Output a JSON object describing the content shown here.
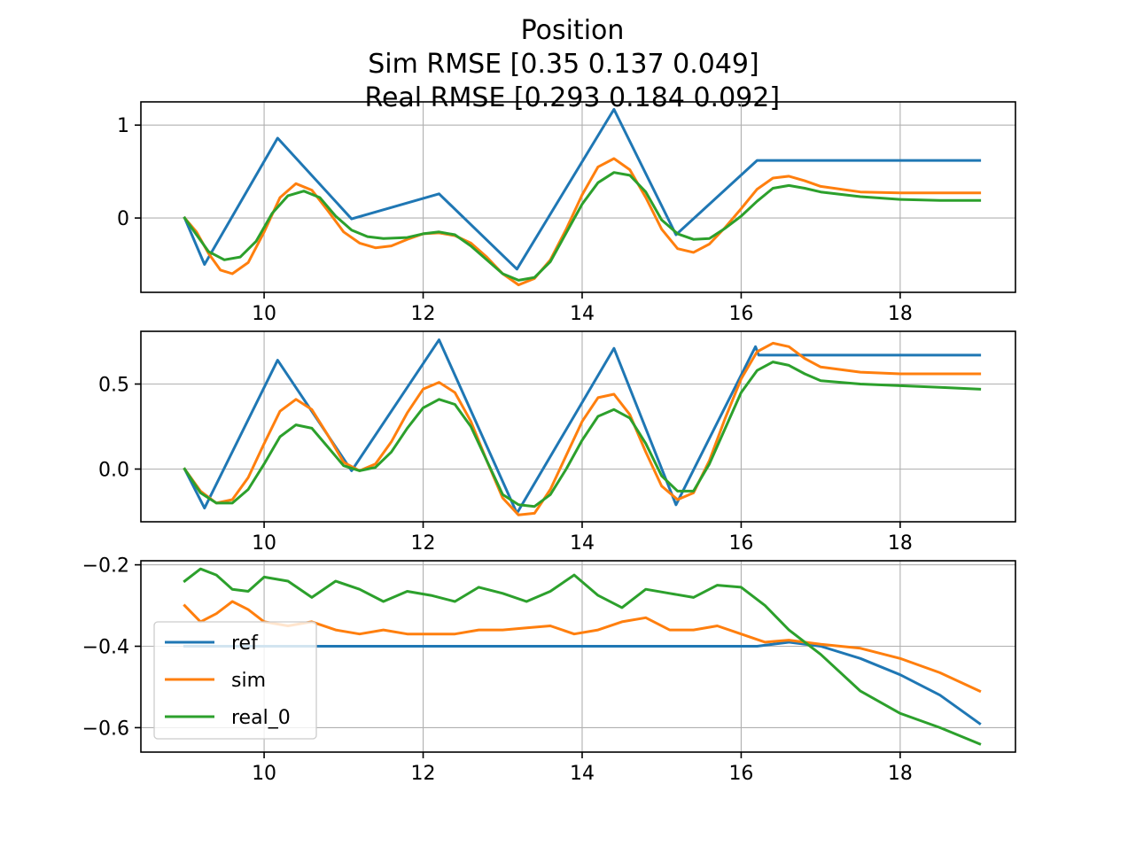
{
  "chart_data": {
    "type": "line",
    "title_lines": [
      "Position",
      "Sim RMSE [0.35  0.137 0.049]",
      " Real RMSE [0.293 0.184 0.092]"
    ],
    "colors": {
      "ref": "#1f77b4",
      "sim": "#ff7f0e",
      "real_0": "#2ca02c"
    },
    "legend": {
      "location": "lower-left",
      "subplot": 3,
      "entries": [
        "ref",
        "sim",
        "real_0"
      ]
    },
    "grid": true,
    "subplots": [
      {
        "xlim": [
          8.45,
          19.45
        ],
        "ylim": [
          -0.8,
          1.25
        ],
        "xticks": [
          10,
          12,
          14,
          16,
          18
        ],
        "xtick_labels": [
          "10",
          "12",
          "14",
          "16",
          "18"
        ],
        "yticks": [
          0,
          1
        ],
        "ytick_labels": [
          "0",
          "1"
        ],
        "series": [
          {
            "name": "ref",
            "x": [
              9.0,
              9.25,
              10.17,
              11.1,
              12.2,
              13.18,
              14.4,
              15.18,
              16.2,
              19.0
            ],
            "y": [
              0.0,
              -0.5,
              0.86,
              -0.01,
              0.26,
              -0.55,
              1.17,
              -0.18,
              0.62,
              0.62
            ]
          },
          {
            "name": "sim",
            "x": [
              9.0,
              9.15,
              9.3,
              9.45,
              9.6,
              9.8,
              10.0,
              10.2,
              10.4,
              10.6,
              10.8,
              11.0,
              11.2,
              11.4,
              11.6,
              11.8,
              12.0,
              12.2,
              12.4,
              12.6,
              12.8,
              13.0,
              13.2,
              13.4,
              13.6,
              13.8,
              14.0,
              14.2,
              14.4,
              14.6,
              14.8,
              15.0,
              15.2,
              15.4,
              15.6,
              15.8,
              16.0,
              16.2,
              16.4,
              16.6,
              16.8,
              17.0,
              17.5,
              18.0,
              18.5,
              19.0
            ],
            "y": [
              0.0,
              -0.15,
              -0.38,
              -0.56,
              -0.6,
              -0.48,
              -0.15,
              0.22,
              0.37,
              0.3,
              0.08,
              -0.15,
              -0.27,
              -0.32,
              -0.3,
              -0.23,
              -0.17,
              -0.16,
              -0.19,
              -0.27,
              -0.42,
              -0.6,
              -0.72,
              -0.65,
              -0.45,
              -0.12,
              0.25,
              0.55,
              0.64,
              0.52,
              0.22,
              -0.12,
              -0.33,
              -0.37,
              -0.28,
              -0.1,
              0.1,
              0.31,
              0.43,
              0.45,
              0.4,
              0.34,
              0.28,
              0.27,
              0.27,
              0.27
            ]
          },
          {
            "name": "real_0",
            "x": [
              9.0,
              9.15,
              9.3,
              9.5,
              9.7,
              9.9,
              10.1,
              10.3,
              10.5,
              10.7,
              10.9,
              11.1,
              11.3,
              11.5,
              11.8,
              12.0,
              12.2,
              12.4,
              12.6,
              12.8,
              13.0,
              13.2,
              13.4,
              13.6,
              13.8,
              14.0,
              14.2,
              14.4,
              14.6,
              14.8,
              15.0,
              15.2,
              15.4,
              15.6,
              15.8,
              16.0,
              16.2,
              16.4,
              16.6,
              16.8,
              17.0,
              17.5,
              18.0,
              18.5,
              19.0
            ],
            "y": [
              0.0,
              -0.18,
              -0.36,
              -0.45,
              -0.42,
              -0.25,
              0.05,
              0.24,
              0.29,
              0.22,
              0.02,
              -0.13,
              -0.2,
              -0.22,
              -0.21,
              -0.17,
              -0.15,
              -0.18,
              -0.3,
              -0.45,
              -0.6,
              -0.67,
              -0.64,
              -0.47,
              -0.16,
              0.15,
              0.38,
              0.49,
              0.46,
              0.28,
              -0.02,
              -0.17,
              -0.23,
              -0.22,
              -0.11,
              0.02,
              0.18,
              0.32,
              0.35,
              0.32,
              0.28,
              0.23,
              0.2,
              0.19,
              0.19
            ]
          }
        ]
      },
      {
        "xlim": [
          8.45,
          19.45
        ],
        "ylim": [
          -0.31,
          0.81
        ],
        "xticks": [
          10,
          12,
          14,
          16,
          18
        ],
        "xtick_labels": [
          "10",
          "12",
          "14",
          "16",
          "18"
        ],
        "yticks": [
          0.0,
          0.5
        ],
        "ytick_labels": [
          "0.0",
          "0.5"
        ],
        "series": [
          {
            "name": "ref",
            "x": [
              9.0,
              9.25,
              10.17,
              11.1,
              12.2,
              13.18,
              14.4,
              15.18,
              16.18,
              16.22,
              19.0
            ],
            "y": [
              0.0,
              -0.23,
              0.64,
              -0.01,
              0.76,
              -0.26,
              0.71,
              -0.21,
              0.72,
              0.67,
              0.67
            ]
          },
          {
            "name": "sim",
            "x": [
              9.0,
              9.2,
              9.4,
              9.6,
              9.8,
              10.0,
              10.2,
              10.4,
              10.6,
              10.8,
              11.0,
              11.2,
              11.4,
              11.6,
              11.8,
              12.0,
              12.2,
              12.4,
              12.6,
              12.8,
              13.0,
              13.2,
              13.4,
              13.6,
              13.8,
              14.0,
              14.2,
              14.4,
              14.6,
              14.8,
              15.0,
              15.2,
              15.4,
              15.6,
              15.8,
              16.0,
              16.2,
              16.4,
              16.6,
              16.8,
              17.0,
              17.5,
              18.0,
              18.5,
              19.0
            ],
            "y": [
              0.0,
              -0.13,
              -0.2,
              -0.18,
              -0.05,
              0.15,
              0.34,
              0.41,
              0.35,
              0.2,
              0.04,
              -0.01,
              0.03,
              0.16,
              0.33,
              0.47,
              0.51,
              0.45,
              0.28,
              0.05,
              -0.17,
              -0.27,
              -0.26,
              -0.12,
              0.08,
              0.28,
              0.42,
              0.44,
              0.32,
              0.1,
              -0.1,
              -0.18,
              -0.14,
              0.05,
              0.3,
              0.53,
              0.69,
              0.74,
              0.72,
              0.65,
              0.6,
              0.57,
              0.56,
              0.56,
              0.56
            ]
          },
          {
            "name": "real_0",
            "x": [
              9.0,
              9.2,
              9.4,
              9.6,
              9.8,
              10.0,
              10.2,
              10.4,
              10.6,
              10.8,
              11.0,
              11.2,
              11.4,
              11.6,
              11.8,
              12.0,
              12.2,
              12.4,
              12.6,
              12.8,
              13.0,
              13.2,
              13.4,
              13.6,
              13.8,
              14.0,
              14.2,
              14.4,
              14.6,
              14.8,
              15.0,
              15.2,
              15.4,
              15.6,
              15.8,
              16.0,
              16.2,
              16.4,
              16.6,
              16.8,
              17.0,
              17.5,
              18.0,
              18.5,
              19.0
            ],
            "y": [
              0.0,
              -0.14,
              -0.2,
              -0.2,
              -0.12,
              0.03,
              0.19,
              0.26,
              0.24,
              0.13,
              0.02,
              -0.01,
              0.01,
              0.1,
              0.24,
              0.36,
              0.41,
              0.38,
              0.25,
              0.05,
              -0.15,
              -0.21,
              -0.22,
              -0.15,
              0.0,
              0.17,
              0.31,
              0.35,
              0.3,
              0.15,
              -0.04,
              -0.13,
              -0.13,
              0.03,
              0.24,
              0.45,
              0.58,
              0.63,
              0.61,
              0.56,
              0.52,
              0.5,
              0.49,
              0.48,
              0.47
            ]
          }
        ]
      },
      {
        "xlim": [
          8.45,
          19.45
        ],
        "ylim": [
          -0.66,
          -0.19
        ],
        "xticks": [
          10,
          12,
          14,
          16,
          18
        ],
        "xtick_labels": [
          "10",
          "12",
          "14",
          "16",
          "18"
        ],
        "yticks": [
          -0.2,
          -0.4,
          -0.6
        ],
        "ytick_labels": [
          "−0.2",
          "−0.4",
          "−0.6"
        ],
        "series": [
          {
            "name": "ref",
            "x": [
              9.0,
              16.2,
              16.6,
              17.0,
              17.5,
              18.0,
              18.5,
              19.0
            ],
            "y": [
              -0.4,
              -0.4,
              -0.39,
              -0.4,
              -0.43,
              -0.47,
              -0.52,
              -0.59
            ]
          },
          {
            "name": "sim",
            "x": [
              9.0,
              9.2,
              9.4,
              9.6,
              9.8,
              10.0,
              10.3,
              10.6,
              10.9,
              11.2,
              11.5,
              11.8,
              12.1,
              12.4,
              12.7,
              13.0,
              13.3,
              13.6,
              13.9,
              14.2,
              14.5,
              14.8,
              15.1,
              15.4,
              15.7,
              16.0,
              16.3,
              16.6,
              17.0,
              17.5,
              18.0,
              18.5,
              19.0
            ],
            "y": [
              -0.3,
              -0.34,
              -0.32,
              -0.29,
              -0.31,
              -0.34,
              -0.35,
              -0.34,
              -0.36,
              -0.37,
              -0.36,
              -0.37,
              -0.37,
              -0.37,
              -0.36,
              -0.36,
              -0.355,
              -0.35,
              -0.37,
              -0.36,
              -0.34,
              -0.33,
              -0.36,
              -0.36,
              -0.35,
              -0.37,
              -0.39,
              -0.385,
              -0.395,
              -0.405,
              -0.43,
              -0.465,
              -0.51
            ]
          },
          {
            "name": "real_0",
            "x": [
              9.0,
              9.2,
              9.4,
              9.6,
              9.8,
              10.0,
              10.3,
              10.6,
              10.9,
              11.2,
              11.5,
              11.8,
              12.1,
              12.4,
              12.7,
              13.0,
              13.3,
              13.6,
              13.9,
              14.2,
              14.5,
              14.8,
              15.1,
              15.4,
              15.7,
              16.0,
              16.3,
              16.6,
              17.0,
              17.5,
              18.0,
              18.5,
              19.0
            ],
            "y": [
              -0.24,
              -0.21,
              -0.225,
              -0.26,
              -0.265,
              -0.23,
              -0.24,
              -0.28,
              -0.24,
              -0.26,
              -0.29,
              -0.265,
              -0.275,
              -0.29,
              -0.255,
              -0.27,
              -0.29,
              -0.265,
              -0.225,
              -0.275,
              -0.305,
              -0.26,
              -0.27,
              -0.28,
              -0.25,
              -0.255,
              -0.3,
              -0.36,
              -0.42,
              -0.51,
              -0.565,
              -0.6,
              -0.64
            ]
          }
        ]
      }
    ]
  }
}
